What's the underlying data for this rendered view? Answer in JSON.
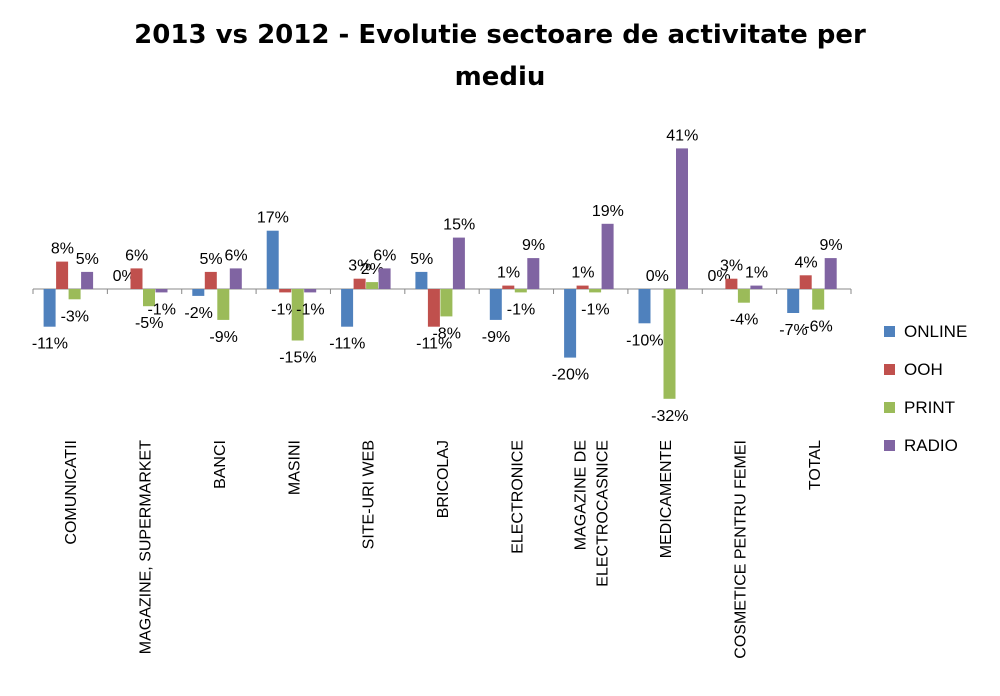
{
  "chart_data": {
    "type": "bar",
    "title_line1": "2013 vs 2012  - Evolutie sectoare de activitate per",
    "title_line2": "mediu",
    "categories": [
      [
        "COMUNICATII"
      ],
      [
        "MAGAZINE, SUPERMARKET"
      ],
      [
        "BANCI"
      ],
      [
        "MASINI"
      ],
      [
        "SITE-URI WEB"
      ],
      [
        "BRICOLAJ"
      ],
      [
        "ELECTRONICE"
      ],
      [
        "MAGAZINE DE",
        "ELECTROCASNICE"
      ],
      [
        "MEDICAMENTE"
      ],
      [
        "COSMETICE PENTRU FEMEI"
      ],
      [
        "TOTAL"
      ]
    ],
    "series": [
      {
        "name": "ONLINE",
        "color": "#4F81BD",
        "values": [
          -11,
          0,
          -2,
          17,
          -11,
          5,
          -9,
          -20,
          -10,
          0,
          -7
        ],
        "labels": [
          "-11%",
          "0%",
          "-2%",
          "17%",
          "-11%",
          "5%",
          "-9%",
          "-20%",
          "-10%",
          "0%",
          "-7%"
        ]
      },
      {
        "name": "OOH",
        "color": "#C0504D",
        "values": [
          8,
          6,
          5,
          -1,
          3,
          -11,
          1,
          1,
          0,
          3,
          4
        ],
        "labels": [
          "8%",
          "6%",
          "5%",
          "-1%",
          "3%",
          "-11%",
          "1%",
          "1%",
          "0%",
          "3%",
          "4%"
        ]
      },
      {
        "name": "PRINT",
        "color": "#9BBB59",
        "values": [
          -3,
          -5,
          -9,
          -15,
          2,
          -8,
          -1,
          -1,
          -32,
          -4,
          -6
        ],
        "labels": [
          "-3%",
          "-5%",
          "-9%",
          "-15%",
          "2%",
          "-8%",
          "-1%",
          "-1%",
          "-32%",
          "-4%",
          "-6%"
        ]
      },
      {
        "name": "RADIO",
        "color": "#8064A2",
        "values": [
          5,
          -1,
          6,
          -1,
          6,
          15,
          9,
          19,
          41,
          1,
          9
        ],
        "labels": [
          "5%",
          "-1%",
          "6%",
          "-1%",
          "6%",
          "15%",
          "9%",
          "19%",
          "41%",
          "1%",
          "9%"
        ]
      }
    ],
    "xlabel": "",
    "ylabel": "",
    "y_axis_visible": false,
    "grid": false,
    "legend_position": "right"
  }
}
